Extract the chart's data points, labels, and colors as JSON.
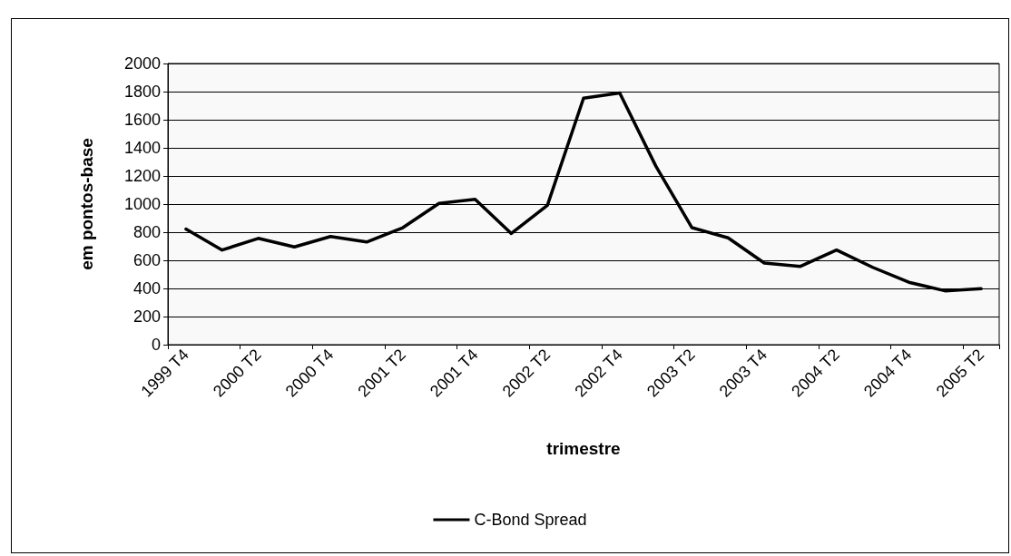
{
  "chart_data": {
    "type": "line",
    "xlabel": "trimestre",
    "ylabel": "em pontos-base",
    "categories": [
      "1999 T4",
      null,
      "2000 T2",
      null,
      "2000 T4",
      null,
      "2001 T2",
      null,
      "2001 T4",
      null,
      "2002 T2",
      null,
      "2002 T4",
      null,
      "2003 T2",
      null,
      "2003 T4",
      null,
      "2004 T2",
      null,
      "2004 T4",
      null,
      "2005 T2"
    ],
    "series": [
      {
        "name": "C-Bond Spread",
        "color": "#000000",
        "values": [
          822,
          673,
          756,
          695,
          769,
          730,
          832,
          1005,
          1034,
          791,
          991,
          1753,
          1790,
          1270,
          832,
          760,
          581,
          557,
          673,
          550,
          444,
          383,
          398
        ]
      }
    ],
    "ylim": [
      0,
      2000
    ],
    "yticks": [
      0,
      200,
      400,
      600,
      800,
      1000,
      1200,
      1400,
      1600,
      1800,
      2000
    ],
    "grid": "y",
    "legend": "bottom",
    "marker": "none",
    "line_style": "solid"
  }
}
